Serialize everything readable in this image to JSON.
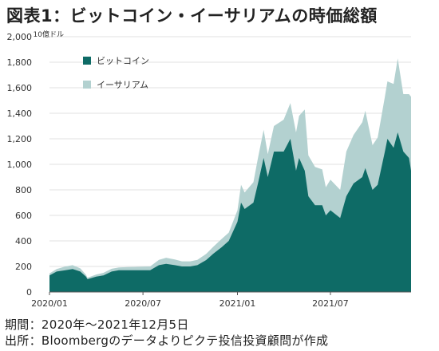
{
  "title": "図表1：ビットコイン・イーサリアムの時価総額",
  "footer": {
    "period": "期間：2020年～2021年12月5日",
    "source": "出所：Bloombergのデータよりピクテ投信投資顧問が作成"
  },
  "colors": {
    "bitcoin": "#0e6b66",
    "ethereum": "#b3d1d0"
  },
  "chart_data": {
    "type": "area",
    "stacked": true,
    "unit_label": "10億ドル",
    "ylim": [
      0,
      2000
    ],
    "yticks": [
      0,
      200,
      400,
      600,
      800,
      1000,
      1200,
      1400,
      1600,
      1800,
      2000
    ],
    "ytick_labels": [
      "0",
      "200",
      "400",
      "600",
      "800",
      "1,000",
      "1,200",
      "1,400",
      "1,600",
      "1,800",
      "2,000"
    ],
    "xlim": [
      "2020-01-01",
      "2021-12-05"
    ],
    "xticks": [
      "2020-01-01",
      "2020-07-01",
      "2021-01-01",
      "2021-07-01"
    ],
    "xtick_labels": [
      "2020/01",
      "2020/07",
      "2021/01",
      "2021/07"
    ],
    "legend": {
      "position": "top-left",
      "entries": [
        "ビットコイン",
        "イーサリアム"
      ]
    },
    "series": [
      {
        "name": "ビットコイン",
        "x": [
          "2020-01-01",
          "2020-01-15",
          "2020-02-01",
          "2020-02-15",
          "2020-03-01",
          "2020-03-12",
          "2020-03-15",
          "2020-04-01",
          "2020-04-15",
          "2020-05-01",
          "2020-05-15",
          "2020-06-01",
          "2020-06-15",
          "2020-07-01",
          "2020-07-15",
          "2020-08-01",
          "2020-08-15",
          "2020-09-01",
          "2020-09-15",
          "2020-10-01",
          "2020-10-15",
          "2020-11-01",
          "2020-11-15",
          "2020-12-01",
          "2020-12-15",
          "2021-01-01",
          "2021-01-08",
          "2021-01-15",
          "2021-02-01",
          "2021-02-10",
          "2021-02-21",
          "2021-03-01",
          "2021-03-13",
          "2021-04-01",
          "2021-04-14",
          "2021-04-25",
          "2021-05-01",
          "2021-05-12",
          "2021-05-19",
          "2021-06-01",
          "2021-06-15",
          "2021-06-22",
          "2021-07-01",
          "2021-07-20",
          "2021-08-01",
          "2021-08-15",
          "2021-09-01",
          "2021-09-07",
          "2021-09-21",
          "2021-10-01",
          "2021-10-15",
          "2021-10-20",
          "2021-11-01",
          "2021-11-09",
          "2021-11-20",
          "2021-12-01",
          "2021-12-05"
        ],
        "values": [
          130,
          160,
          170,
          180,
          160,
          120,
          100,
          120,
          130,
          160,
          170,
          170,
          170,
          170,
          170,
          210,
          220,
          210,
          200,
          200,
          210,
          250,
          300,
          350,
          400,
          550,
          700,
          650,
          700,
          850,
          1050,
          900,
          1100,
          1100,
          1200,
          950,
          1050,
          950,
          750,
          680,
          680,
          600,
          640,
          580,
          750,
          850,
          900,
          970,
          800,
          840,
          1100,
          1200,
          1130,
          1250,
          1100,
          1050,
          950
        ]
      },
      {
        "name": "イーサリアム",
        "x": [
          "2020-01-01",
          "2020-01-15",
          "2020-02-01",
          "2020-02-15",
          "2020-03-01",
          "2020-03-12",
          "2020-03-15",
          "2020-04-01",
          "2020-04-15",
          "2020-05-01",
          "2020-05-15",
          "2020-06-01",
          "2020-06-15",
          "2020-07-01",
          "2020-07-15",
          "2020-08-01",
          "2020-08-15",
          "2020-09-01",
          "2020-09-15",
          "2020-10-01",
          "2020-10-15",
          "2020-11-01",
          "2020-11-15",
          "2020-12-01",
          "2020-12-15",
          "2021-01-01",
          "2021-01-08",
          "2021-01-15",
          "2021-02-01",
          "2021-02-10",
          "2021-02-21",
          "2021-03-01",
          "2021-03-13",
          "2021-04-01",
          "2021-04-14",
          "2021-04-25",
          "2021-05-01",
          "2021-05-12",
          "2021-05-19",
          "2021-06-01",
          "2021-06-15",
          "2021-06-22",
          "2021-07-01",
          "2021-07-20",
          "2021-08-01",
          "2021-08-15",
          "2021-09-01",
          "2021-09-07",
          "2021-09-21",
          "2021-10-01",
          "2021-10-15",
          "2021-10-20",
          "2021-11-01",
          "2021-11-09",
          "2021-11-20",
          "2021-12-01",
          "2021-12-05"
        ],
        "values": [
          15,
          20,
          30,
          30,
          25,
          15,
          12,
          17,
          20,
          22,
          22,
          25,
          26,
          28,
          30,
          42,
          48,
          45,
          40,
          40,
          42,
          48,
          55,
          65,
          65,
          90,
          140,
          130,
          160,
          200,
          220,
          180,
          200,
          250,
          280,
          300,
          330,
          480,
          320,
          300,
          280,
          220,
          240,
          220,
          350,
          380,
          430,
          450,
          350,
          370,
          430,
          450,
          500,
          580,
          450,
          500,
          580
        ]
      }
    ]
  }
}
